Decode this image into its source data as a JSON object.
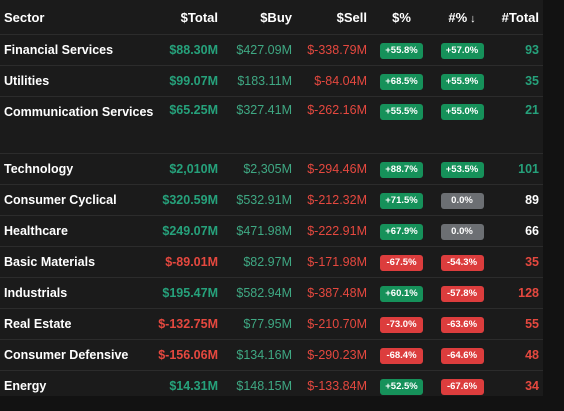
{
  "columns": {
    "sector": "Sector",
    "total": "$Total",
    "buy": "$Buy",
    "sell": "$Sell",
    "pct": "$%",
    "npct": "#%",
    "ntotal": "#Total"
  },
  "sort": {
    "column": "#%",
    "direction": "descending",
    "icon": "arrow-down-icon"
  },
  "colors": {
    "positive": "#26a17b",
    "negative": "#e5483f",
    "badge_green": "#16915a",
    "badge_red": "#dc3d3d",
    "badge_gray": "#6c6f73"
  },
  "rows": [
    {
      "sector": "Financial Services",
      "total": "$88.30M",
      "buy": "$427.09M",
      "sell": "$-338.79M",
      "pct": "+55.8%",
      "npct": "+57.0%",
      "ntotal": "93"
    },
    {
      "sector": "Utilities",
      "total": "$99.07M",
      "buy": "$183.11M",
      "sell": "$-84.04M",
      "pct": "+68.5%",
      "npct": "+55.9%",
      "ntotal": "35"
    },
    {
      "sector": "Communication Services",
      "total": "$65.25M",
      "buy": "$327.41M",
      "sell": "$-262.16M",
      "pct": "+55.5%",
      "npct": "+55.0%",
      "ntotal": "21"
    },
    {
      "sector": "Technology",
      "total": "$2,010M",
      "buy": "$2,305M",
      "sell": "$-294.46M",
      "pct": "+88.7%",
      "npct": "+53.5%",
      "ntotal": "101"
    },
    {
      "sector": "Consumer Cyclical",
      "total": "$320.59M",
      "buy": "$532.91M",
      "sell": "$-212.32M",
      "pct": "+71.5%",
      "npct": "0.0%",
      "ntotal": "89"
    },
    {
      "sector": "Healthcare",
      "total": "$249.07M",
      "buy": "$471.98M",
      "sell": "$-222.91M",
      "pct": "+67.9%",
      "npct": "0.0%",
      "ntotal": "66"
    },
    {
      "sector": "Basic Materials",
      "total": "$-89.01M",
      "buy": "$82.97M",
      "sell": "$-171.98M",
      "pct": "-67.5%",
      "npct": "-54.3%",
      "ntotal": "35"
    },
    {
      "sector": "Industrials",
      "total": "$195.47M",
      "buy": "$582.94M",
      "sell": "$-387.48M",
      "pct": "+60.1%",
      "npct": "-57.8%",
      "ntotal": "128"
    },
    {
      "sector": "Real Estate",
      "total": "$-132.75M",
      "buy": "$77.95M",
      "sell": "$-210.70M",
      "pct": "-73.0%",
      "npct": "-63.6%",
      "ntotal": "55"
    },
    {
      "sector": "Consumer Defensive",
      "total": "$-156.06M",
      "buy": "$134.16M",
      "sell": "$-290.23M",
      "pct": "-68.4%",
      "npct": "-64.6%",
      "ntotal": "48"
    },
    {
      "sector": "Energy",
      "total": "$14.31M",
      "buy": "$148.15M",
      "sell": "$-133.84M",
      "pct": "+52.5%",
      "npct": "-67.6%",
      "ntotal": "34"
    }
  ]
}
